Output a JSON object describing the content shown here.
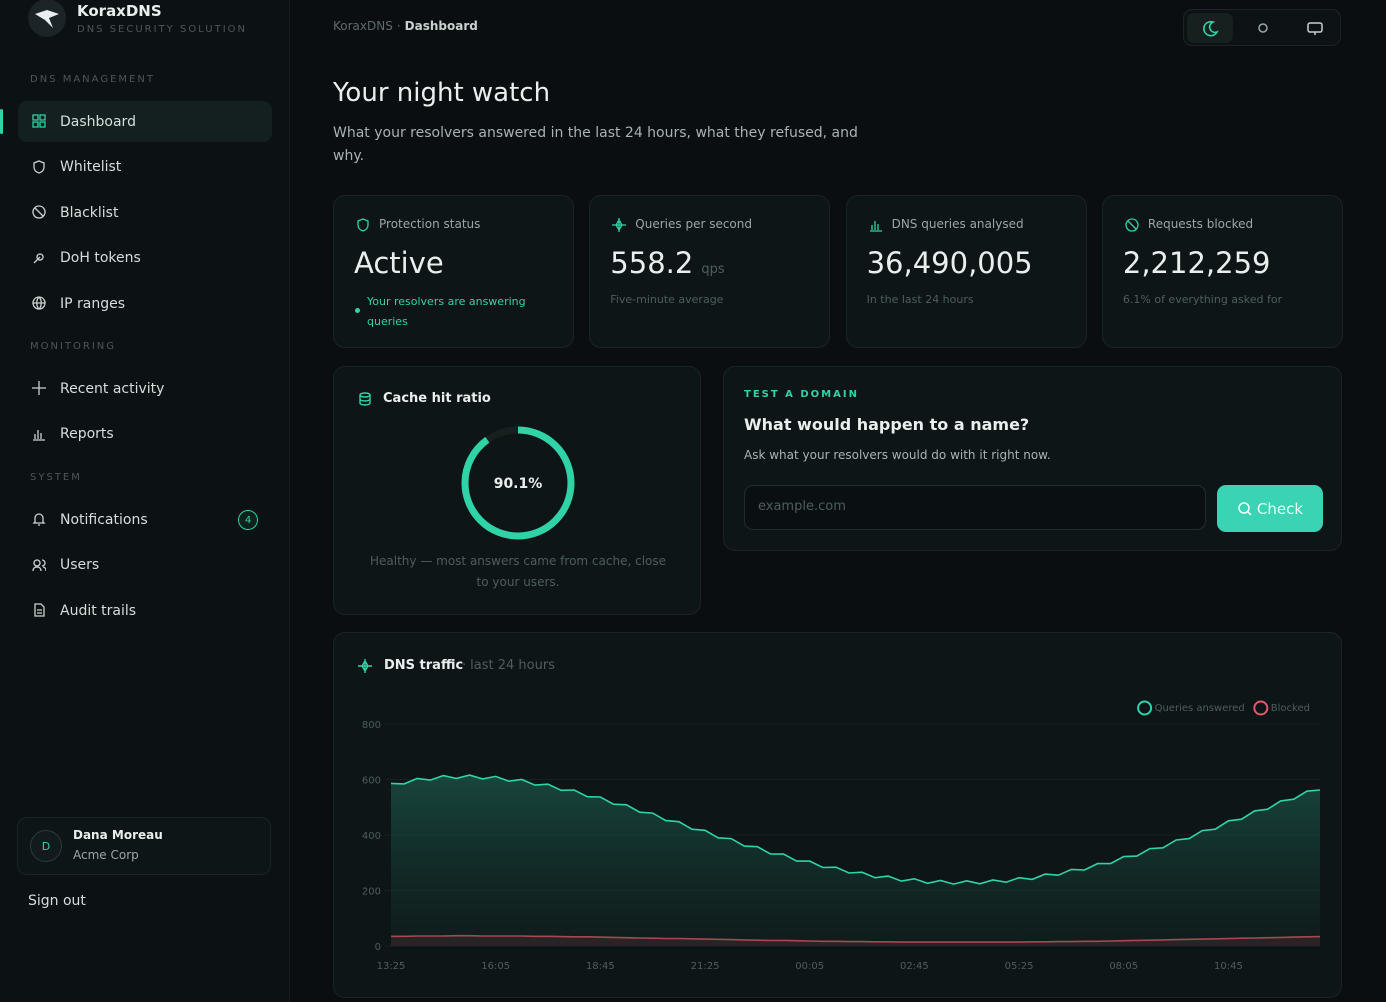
{
  "brand": {
    "name": "KoraxDNS",
    "tagline": "DNS SECURITY SOLUTION"
  },
  "nav": {
    "sections": [
      {
        "title": "DNS MANAGEMENT",
        "items": [
          "Dashboard",
          "Whitelist",
          "Blacklist",
          "DoH tokens",
          "IP ranges"
        ]
      },
      {
        "title": "MONITORING",
        "items": [
          "Recent activity",
          "Reports"
        ]
      },
      {
        "title": "SYSTEM",
        "items": [
          "Notifications",
          "Users",
          "Audit trails"
        ]
      }
    ],
    "badge": "4"
  },
  "user": {
    "initial": "D",
    "name": "Dana Moreau",
    "org": "Acme Corp"
  },
  "sign_out": "Sign out",
  "breadcrumb": [
    "KoraxDNS",
    "Dashboard"
  ],
  "header": {
    "title": "Your night watch",
    "description": "What your resolvers answered in the last 24 hours, what they refused, and why."
  },
  "stats": [
    {
      "label": "Protection status",
      "value": "Active",
      "note": "Your resolvers are answering queries"
    },
    {
      "label": "Queries per second",
      "value": "558.2",
      "unit": "qps",
      "note": "Five-minute average"
    },
    {
      "label": "DNS queries analysed",
      "value": "36,490,005",
      "note": "In the last 24 hours"
    },
    {
      "label": "Requests blocked",
      "value": "2,212,259",
      "note": "6.1% of everything asked for"
    }
  ],
  "cache": {
    "title": "Cache hit ratio",
    "value": 90.1,
    "value_label": "90.1%",
    "note": "Healthy — most answers came from cache, close to your users."
  },
  "test": {
    "eyebrow": "TEST A DOMAIN",
    "title": "What would happen to a name?",
    "description": "Ask what your resolvers would do with it right now.",
    "placeholder": "example.com",
    "button": "Check"
  },
  "chart_data": {
    "type": "line",
    "title": "DNS traffic",
    "subtitle": "last 24 hours",
    "categories": [
      "13:25",
      null,
      null,
      null,
      null,
      null,
      null,
      null,
      "16:05",
      null,
      null,
      null,
      null,
      null,
      null,
      null,
      "18:45",
      null,
      null,
      null,
      null,
      null,
      null,
      null,
      "21:25",
      null,
      null,
      null,
      null,
      null,
      null,
      null,
      "00:05",
      null,
      null,
      null,
      null,
      null,
      null,
      null,
      "02:45",
      null,
      null,
      null,
      null,
      null,
      null,
      null,
      "05:25",
      null,
      null,
      null,
      null,
      null,
      null,
      null,
      "08:05",
      null,
      null,
      null,
      null,
      null,
      null,
      null,
      "10:45",
      null,
      null,
      null,
      null,
      null,
      null,
      null
    ],
    "series": [
      {
        "name": "Queries answered",
        "color": "#2fd3a6",
        "values": [
          586,
          584,
          604,
          598,
          614,
          604,
          616,
          602,
          611,
          594,
          600,
          580,
          583,
          561,
          562,
          538,
          537,
          511,
          509,
          482,
          479,
          452,
          448,
          421,
          417,
          390,
          387,
          360,
          358,
          332,
          331,
          306,
          306,
          283,
          284,
          263,
          266,
          246,
          252,
          234,
          242,
          226,
          236,
          223,
          235,
          224,
          238,
          230,
          246,
          240,
          259,
          255,
          276,
          274,
          297,
          297,
          322,
          324,
          351,
          354,
          382,
          387,
          416,
          421,
          451,
          457,
          487,
          493,
          523,
          529,
          558,
          562
        ]
      },
      {
        "name": "Blocked",
        "color": "#e05a68",
        "values": [
          35,
          35,
          36,
          36,
          36,
          37,
          37,
          36,
          36,
          36,
          36,
          35,
          35,
          34,
          33,
          33,
          32,
          31,
          30,
          29,
          28,
          27,
          27,
          26,
          25,
          24,
          23,
          22,
          21,
          20,
          20,
          19,
          18,
          17,
          17,
          16,
          16,
          15,
          15,
          14,
          14,
          14,
          14,
          14,
          14,
          14,
          14,
          14,
          14,
          15,
          15,
          16,
          16,
          17,
          17,
          18,
          19,
          20,
          21,
          22,
          23,
          24,
          25,
          26,
          27,
          28,
          29,
          30,
          31,
          32,
          33,
          34
        ]
      }
    ],
    "ylim": [
      0,
      800
    ],
    "yticks": [
      0,
      200,
      400,
      600,
      800
    ],
    "grid": true,
    "legend": "top-right"
  }
}
